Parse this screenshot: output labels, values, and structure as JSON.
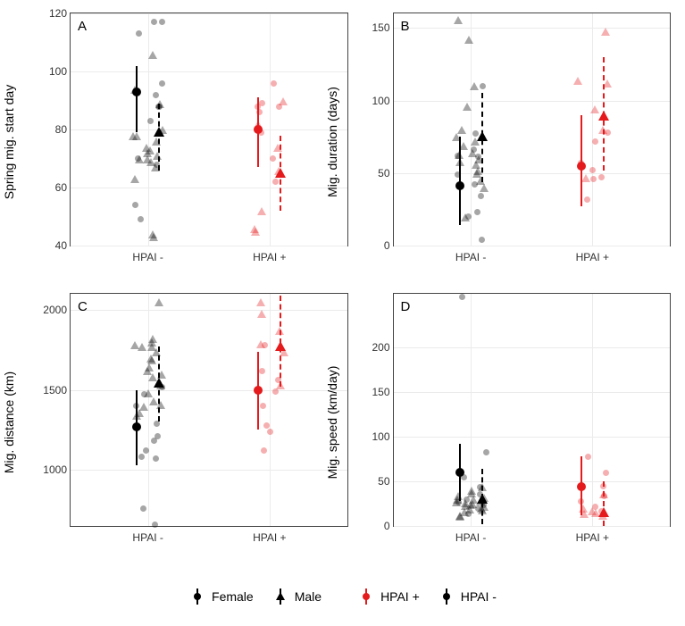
{
  "colors": {
    "hpai_neg": "#000000",
    "hpai_pos": "#e41a1c",
    "raw_alpha": 0.35,
    "grid": "#ebebeb",
    "border": "#444444",
    "bg": "#ffffff"
  },
  "x_categories": [
    "HPAI -",
    "HPAI +"
  ],
  "x_positions": [
    0.28,
    0.72
  ],
  "jitter": 0.055,
  "marker": {
    "circ_r": 4,
    "tri_half": 5,
    "line_w": 2
  },
  "summary_offset": 0.04,
  "panels": [
    {
      "id": "A",
      "letter": "A",
      "ylabel": "Spring mig. start day",
      "ylim": [
        40,
        120
      ],
      "yticks": [
        40,
        60,
        80,
        100,
        120
      ],
      "raw_neg_female": [
        117,
        117,
        113,
        96,
        92,
        88,
        88,
        83,
        70,
        68,
        54,
        49
      ],
      "raw_neg_male": [
        106,
        94,
        89,
        80,
        78,
        78,
        76,
        74,
        73,
        72,
        71,
        70,
        70,
        69,
        67,
        63,
        44,
        43
      ],
      "raw_pos_female": [
        96,
        89,
        88,
        88,
        86,
        79,
        70,
        62
      ],
      "raw_pos_male": [
        90,
        82,
        74,
        66,
        52,
        46,
        45
      ],
      "summary": {
        "neg_female": {
          "mean": 93,
          "lo": 79,
          "hi": 102
        },
        "neg_male": {
          "mean": 79,
          "lo": 66,
          "hi": 89
        },
        "pos_female": {
          "mean": 80,
          "lo": 67,
          "hi": 91
        },
        "pos_male": {
          "mean": 65,
          "lo": 52,
          "hi": 78
        }
      }
    },
    {
      "id": "B",
      "letter": "B",
      "ylabel": "Mig. duration (days)",
      "ylim": [
        0,
        160
      ],
      "yticks": [
        0,
        50,
        100,
        150
      ],
      "raw_neg_female": [
        110,
        77,
        66,
        62,
        61,
        49,
        42,
        34,
        23,
        20,
        4
      ],
      "raw_neg_male": [
        156,
        142,
        110,
        96,
        80,
        75,
        72,
        69,
        64,
        63,
        60,
        58,
        56,
        52,
        50,
        45,
        40,
        20
      ],
      "raw_pos_female": [
        78,
        72,
        57,
        52,
        47,
        46,
        32
      ],
      "raw_pos_male": [
        148,
        114,
        112,
        94,
        80,
        47
      ],
      "summary": {
        "neg_female": {
          "mean": 41,
          "lo": 14,
          "hi": 75
        },
        "neg_male": {
          "mean": 75,
          "lo": 44,
          "hi": 105
        },
        "pos_female": {
          "mean": 55,
          "lo": 27,
          "hi": 90
        },
        "pos_male": {
          "mean": 89,
          "lo": 52,
          "hi": 130
        }
      }
    },
    {
      "id": "C",
      "letter": "C",
      "ylabel": "Mig. distance (km)",
      "ylim": [
        650,
        2100
      ],
      "yticks": [
        1000,
        1500,
        2000
      ],
      "raw_neg_female": [
        1520,
        1470,
        1400,
        1290,
        1210,
        1180,
        1120,
        1080,
        1070,
        760,
        660
      ],
      "raw_neg_male": [
        2050,
        1820,
        1800,
        1780,
        1770,
        1770,
        1740,
        1700,
        1690,
        1640,
        1620,
        1600,
        1580,
        1530,
        1480,
        1430,
        1410,
        1400,
        1360,
        1340
      ],
      "raw_pos_female": [
        1780,
        1620,
        1560,
        1490,
        1400,
        1280,
        1240,
        1120
      ],
      "raw_pos_male": [
        2050,
        1980,
        1870,
        1790,
        1770,
        1740,
        1530
      ],
      "summary": {
        "neg_female": {
          "mean": 1270,
          "lo": 1030,
          "hi": 1500
        },
        "neg_male": {
          "mean": 1540,
          "lo": 1300,
          "hi": 1770
        },
        "pos_female": {
          "mean": 1500,
          "lo": 1250,
          "hi": 1740
        },
        "pos_male": {
          "mean": 1770,
          "lo": 1520,
          "hi": 2090
        }
      }
    },
    {
      "id": "D",
      "letter": "D",
      "ylabel": "Mig. speed (km/day)",
      "ylim": [
        0,
        260
      ],
      "yticks": [
        0,
        50,
        100,
        150,
        200
      ],
      "raw_neg_female": [
        257,
        83,
        60,
        55,
        44,
        36,
        30,
        27,
        24,
        20,
        14
      ],
      "raw_neg_male": [
        44,
        40,
        37,
        34,
        32,
        30,
        30,
        28,
        27,
        26,
        25,
        24,
        23,
        22,
        20,
        19,
        18,
        16,
        12,
        11
      ],
      "raw_pos_female": [
        78,
        60,
        45,
        34,
        28,
        22,
        17
      ],
      "raw_pos_male": [
        36,
        20,
        17,
        15,
        14,
        12
      ],
      "summary": {
        "neg_female": {
          "mean": 60,
          "lo": 28,
          "hi": 92
        },
        "neg_male": {
          "mean": 30,
          "lo": 2,
          "hi": 64
        },
        "pos_female": {
          "mean": 44,
          "lo": 12,
          "hi": 78
        },
        "pos_male": {
          "mean": 15,
          "lo": -16,
          "hi": 50
        }
      }
    }
  ],
  "legend": {
    "sex": [
      {
        "label": "Female",
        "shape": "circle"
      },
      {
        "label": "Male",
        "shape": "triangle"
      }
    ],
    "status": [
      {
        "label": "HPAI +",
        "color": "#e41a1c"
      },
      {
        "label": "HPAI -",
        "color": "#000000"
      }
    ]
  }
}
